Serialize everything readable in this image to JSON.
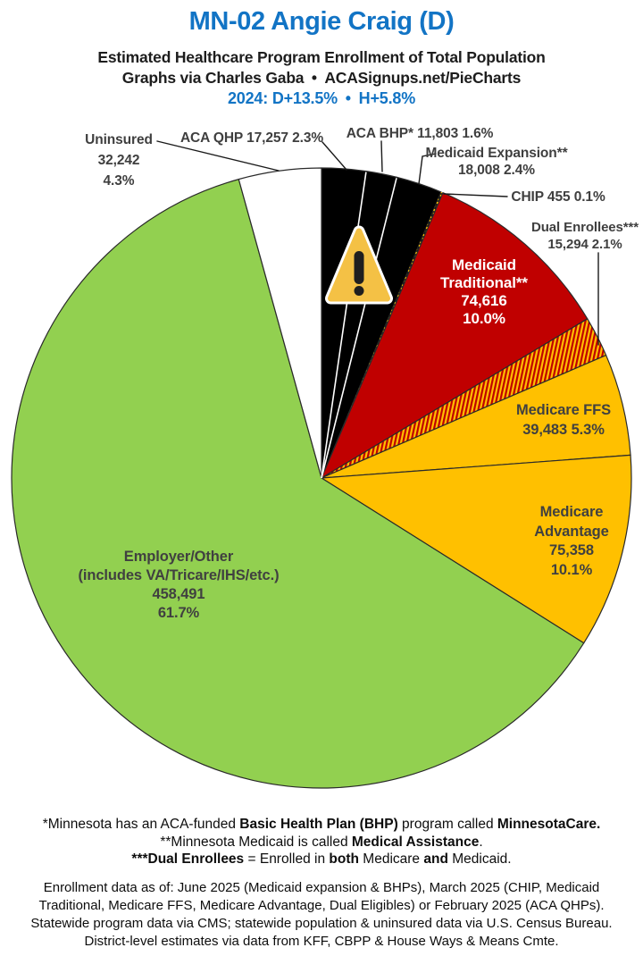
{
  "header": {
    "title": "MN-02 Angie Craig (D)",
    "subtitle1": "Estimated Healthcare Program Enrollment of Total Population",
    "subtitle2": "Graphs via Charles Gaba • ACASignups.net/PieCharts",
    "partisan_line": "2024: D+13.5% • H+5.8%",
    "title_color": "#1274C5"
  },
  "chart_data": {
    "type": "pie",
    "title": "Estimated Healthcare Program Enrollment of Total Population",
    "start_angle_deg": 0,
    "direction": "clockwise",
    "legend_position": "none",
    "slices": [
      {
        "id": "aca_qhp",
        "name": "ACA QHP",
        "enrollment": "17,257",
        "pct": "2.3%",
        "pct_value": 2.3,
        "color": "#000000"
      },
      {
        "id": "aca_bhp",
        "name": "ACA BHP*",
        "enrollment": "11,803",
        "pct": "1.6%",
        "pct_value": 1.6,
        "color": "#000000"
      },
      {
        "id": "medicaid_expansion",
        "name": "Medicaid Expansion**",
        "enrollment": "18,008",
        "pct": "2.4%",
        "pct_value": 2.4,
        "color": "#000000"
      },
      {
        "id": "chip",
        "name": "CHIP",
        "enrollment": "455",
        "pct": "0.1%",
        "pct_value": 0.1,
        "color": "chip-dots"
      },
      {
        "id": "medicaid_traditional",
        "name": "Medicaid Traditional**",
        "name_lines": [
          "Medicaid",
          "Traditional**"
        ],
        "enrollment": "74,616",
        "pct": "10.0%",
        "pct_value": 10.0,
        "color": "#C00000"
      },
      {
        "id": "dual_enrollees",
        "name": "Dual Enrollees***",
        "enrollment": "15,294",
        "pct": "2.1%",
        "pct_value": 2.1,
        "color": "dual-hatch"
      },
      {
        "id": "medicare_ffs",
        "name": "Medicare FFS",
        "enrollment": "39,483",
        "pct": "5.3%",
        "pct_value": 5.3,
        "color": "#FFC000"
      },
      {
        "id": "medicare_advantage",
        "name": "Medicare Advantage",
        "name_lines": [
          "Medicare",
          "Advantage"
        ],
        "enrollment": "75,358",
        "pct": "10.1%",
        "pct_value": 10.1,
        "color": "#FFC000"
      },
      {
        "id": "employer_other",
        "name": "Employer/Other",
        "name_lines": [
          "Employer/Other",
          "(includes VA/Tricare/IHS/etc.)"
        ],
        "enrollment": "458,491",
        "pct": "61.7%",
        "pct_value": 61.7,
        "color": "#92D050"
      },
      {
        "id": "uninsured",
        "name": "Uninsured",
        "enrollment": "32,242",
        "pct": "4.3%",
        "pct_value": 4.3,
        "color": "#FFFFFF"
      }
    ],
    "palette": {
      "black": "#000000",
      "red": "#C00000",
      "gold": "#FFC000",
      "green": "#92D050",
      "white": "#FFFFFF",
      "hatch_red": "#C00000",
      "hatch_gold": "#FFC000",
      "label_gray": "#3F3F3F",
      "warning_triangle": "#F4C145"
    },
    "warning_icon": true
  },
  "footnotes": {
    "program_notes": [
      {
        "segments": [
          {
            "text": "*Minnesota has an ACA-funded ",
            "bold": false
          },
          {
            "text": "Basic Health Plan (BHP)",
            "bold": true
          },
          {
            "text": " program called ",
            "bold": false
          },
          {
            "text": "MinnesotaCare.",
            "bold": true
          }
        ]
      },
      {
        "segments": [
          {
            "text": "**Minnesota Medicaid is called ",
            "bold": false
          },
          {
            "text": "Medical Assistance",
            "bold": true
          },
          {
            "text": ".",
            "bold": false
          }
        ]
      },
      {
        "segments": [
          {
            "text": "***Dual Enrollees",
            "bold": true
          },
          {
            "text": " = Enrolled in ",
            "bold": false
          },
          {
            "text": "both",
            "bold": true
          },
          {
            "text": " Medicare ",
            "bold": false
          },
          {
            "text": "and",
            "bold": true
          },
          {
            "text": " Medicaid.",
            "bold": false
          }
        ]
      }
    ],
    "data_source_lines": [
      "Enrollment data as of: June 2025 (Medicaid expansion & BHPs), March 2025 (CHIP, Medicaid",
      "Traditional, Medicare FFS, Medicare Advantage, Dual Eligibles) or February 2025 (ACA QHPs).",
      "Statewide program data via CMS; statewide population & uninsured data via U.S. Census Bureau.",
      "District-level estimates via data from KFF, CBPP & House Ways & Means Cmte."
    ]
  }
}
